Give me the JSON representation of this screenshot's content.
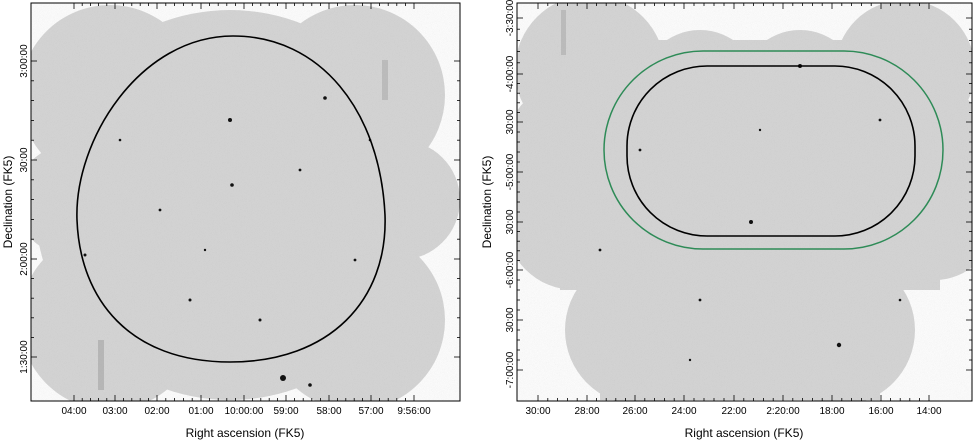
{
  "panels": [
    {
      "x_label": "Right ascension (FK5)",
      "y_label": "Declination (FK5)",
      "x_ticks": [
        "04:00",
        "03:00",
        "02:00",
        "01:00",
        "10:00:00",
        "59:00",
        "58:00",
        "57:00",
        "9:56:00"
      ],
      "y_ticks": [
        "3:00:00",
        "30:00",
        "2:00:00",
        "1:30:00"
      ],
      "contour_colors": [
        "#000000"
      ]
    },
    {
      "x_label": "Right ascension (FK5)",
      "y_label": "Declination (FK5)",
      "x_ticks": [
        "30:00",
        "28:00",
        "26:00",
        "24:00",
        "22:00",
        "2:20:00",
        "18:00",
        "16:00",
        "14:00"
      ],
      "y_ticks": [
        "-3:30:00",
        "-4:00:00",
        "30:00",
        "-5:00:00",
        "30:00",
        "-6:00:00",
        "30:00",
        "-7:00:00"
      ],
      "contour_colors": [
        "#000000",
        "#2e8b57"
      ]
    }
  ],
  "colors": {
    "sky_background": "#cfcfcf",
    "frame": "#000000"
  }
}
